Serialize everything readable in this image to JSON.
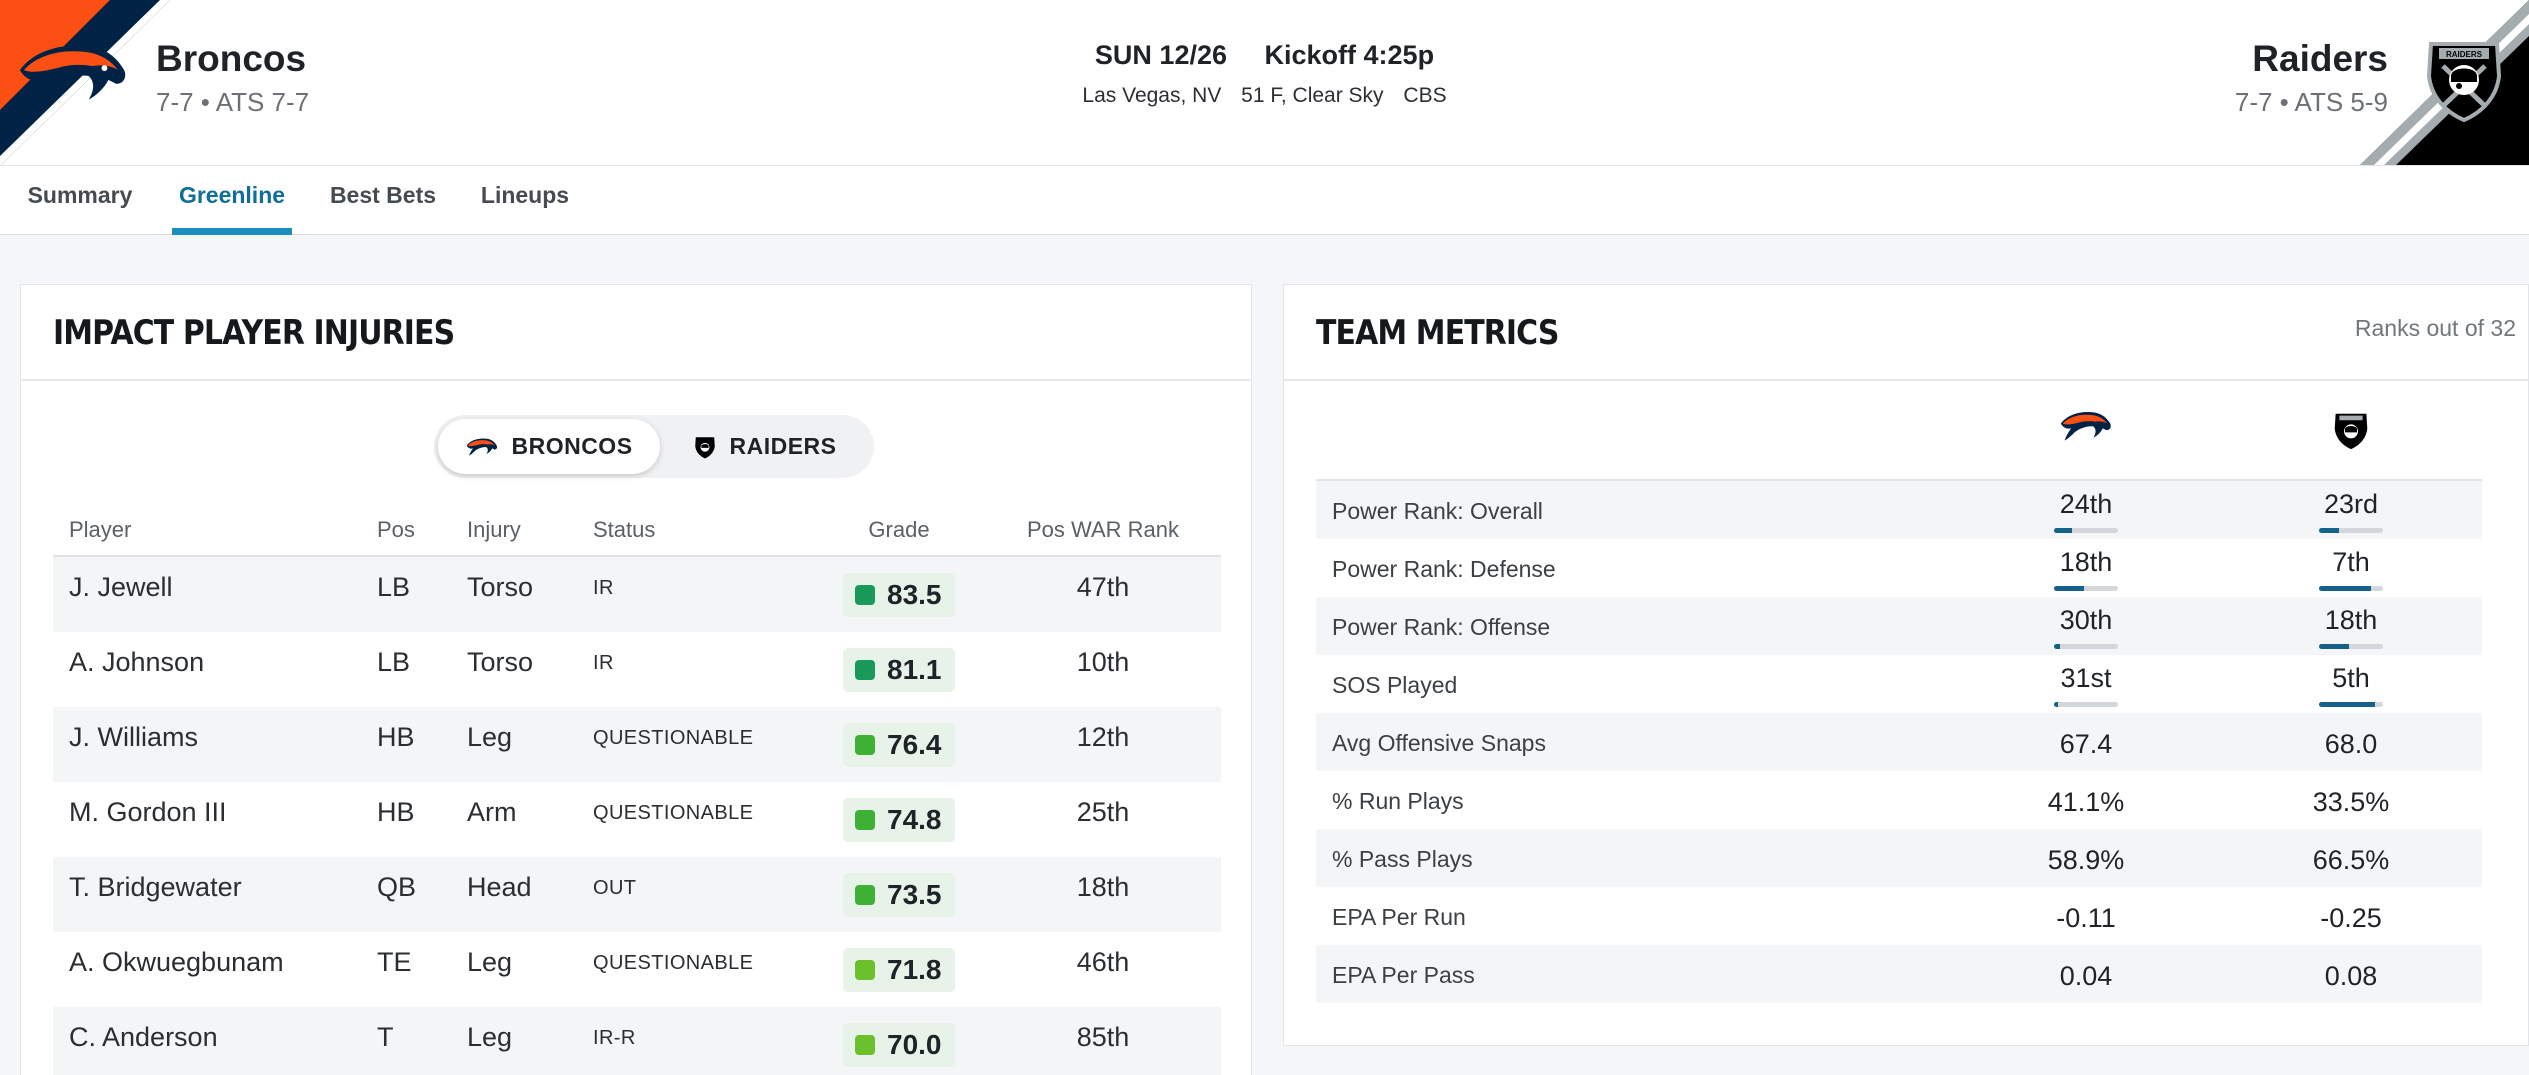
{
  "header": {
    "home": {
      "name": "Broncos",
      "record": "7-7 • ATS 7-7",
      "color": "#fb4f14",
      "accent": "#002244"
    },
    "away": {
      "name": "Raiders",
      "record": "7-7 • ATS 5-9",
      "color": "#000000",
      "accent": "#a5acaf"
    },
    "game": {
      "date": "SUN 12/26",
      "kickoff": "Kickoff 4:25p",
      "location": "Las Vegas, NV",
      "weather": "51 F, Clear Sky",
      "network": "CBS"
    }
  },
  "tabs": [
    {
      "label": "Summary",
      "active": false
    },
    {
      "label": "Greenline",
      "active": true
    },
    {
      "label": "Best Bets",
      "active": false
    },
    {
      "label": "Lineups",
      "active": false
    }
  ],
  "injuries": {
    "title": "IMPACT PLAYER INJURIES",
    "toggle": [
      {
        "label": "BRONCOS",
        "active": true,
        "icon": "broncos-logo-icon"
      },
      {
        "label": "RAIDERS",
        "active": false,
        "icon": "raiders-logo-icon"
      }
    ],
    "columns": [
      "Player",
      "Pos",
      "Injury",
      "Status",
      "Grade",
      "Pos WAR Rank"
    ],
    "rows": [
      {
        "player": "J. Jewell",
        "pos": "LB",
        "injury": "Torso",
        "status": "IR",
        "grade": "83.5",
        "grade_color": "#1a9a5a",
        "rank": "47th"
      },
      {
        "player": "A. Johnson",
        "pos": "LB",
        "injury": "Torso",
        "status": "IR",
        "grade": "81.1",
        "grade_color": "#1a9a5a",
        "rank": "10th"
      },
      {
        "player": "J. Williams",
        "pos": "HB",
        "injury": "Leg",
        "status": "QUESTIONABLE",
        "grade": "76.4",
        "grade_color": "#3db035",
        "rank": "12th"
      },
      {
        "player": "M. Gordon III",
        "pos": "HB",
        "injury": "Arm",
        "status": "QUESTIONABLE",
        "grade": "74.8",
        "grade_color": "#3db035",
        "rank": "25th"
      },
      {
        "player": "T. Bridgewater",
        "pos": "QB",
        "injury": "Head",
        "status": "OUT",
        "grade": "73.5",
        "grade_color": "#3db035",
        "rank": "18th"
      },
      {
        "player": "A. Okwuegbunam",
        "pos": "TE",
        "injury": "Leg",
        "status": "QUESTIONABLE",
        "grade": "71.8",
        "grade_color": "#6cc02c",
        "rank": "46th"
      },
      {
        "player": "C. Anderson",
        "pos": "T",
        "injury": "Leg",
        "status": "IR-R",
        "grade": "70.0",
        "grade_color": "#6cc02c",
        "rank": "85th"
      }
    ]
  },
  "metrics": {
    "title": "TEAM METRICS",
    "note": "Ranks out of 32",
    "rows": [
      {
        "label": "Power Rank: Overall",
        "home": "24th",
        "away": "23rd",
        "home_rank": 24,
        "away_rank": 23,
        "ranked": true
      },
      {
        "label": "Power Rank: Defense",
        "home": "18th",
        "away": "7th",
        "home_rank": 18,
        "away_rank": 7,
        "ranked": true
      },
      {
        "label": "Power Rank: Offense",
        "home": "30th",
        "away": "18th",
        "home_rank": 30,
        "away_rank": 18,
        "ranked": true
      },
      {
        "label": "SOS Played",
        "home": "31st",
        "away": "5th",
        "home_rank": 31,
        "away_rank": 5,
        "ranked": true
      },
      {
        "label": "Avg Offensive Snaps",
        "home": "67.4",
        "away": "68.0",
        "ranked": false
      },
      {
        "label": "% Run Plays",
        "home": "41.1%",
        "away": "33.5%",
        "ranked": false
      },
      {
        "label": "% Pass Plays",
        "home": "58.9%",
        "away": "66.5%",
        "ranked": false
      },
      {
        "label": "EPA Per Run",
        "home": "-0.11",
        "away": "-0.25",
        "ranked": false
      },
      {
        "label": "EPA Per Pass",
        "home": "0.04",
        "away": "0.08",
        "ranked": false
      }
    ]
  }
}
